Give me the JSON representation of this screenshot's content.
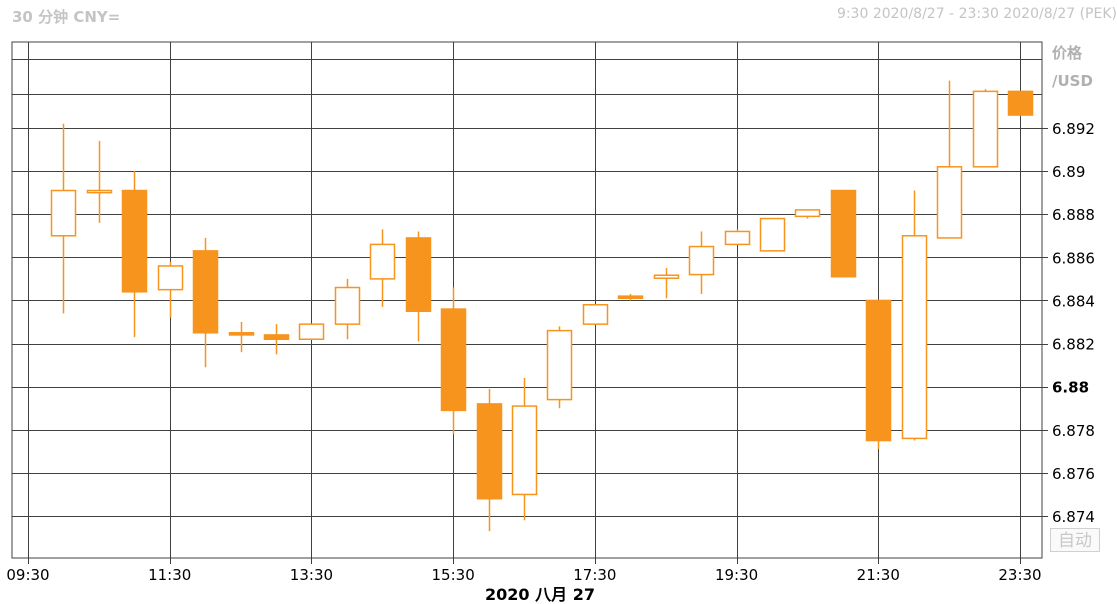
{
  "header": {
    "left_title": "30 分钟 CNY=",
    "time_range": "9:30 2020/8/27 - 23:30 2020/8/27 (PEK)"
  },
  "colors": {
    "up": "#f7941d",
    "down": "#f7941d",
    "grid": "#404040"
  },
  "auto_label": "自动",
  "chart_data": {
    "type": "candlestick",
    "ylabel": [
      "价格",
      "/USD"
    ],
    "xlabel": "2020 八月 27",
    "ylim": [
      6.8728,
      6.8952
    ],
    "yticks": [
      6.874,
      6.876,
      6.878,
      6.88,
      6.882,
      6.884,
      6.886,
      6.888,
      6.89,
      6.892
    ],
    "ytick_labels": [
      "6.874",
      "6.876",
      "6.878",
      "6.88",
      "6.882",
      "6.884",
      "6.886",
      "6.888",
      "6.89",
      "6.892"
    ],
    "highlight_tick": "6.88",
    "xlim": [
      0,
      28.6
    ],
    "xticks": [
      0,
      4,
      8,
      12,
      16,
      20,
      24,
      28
    ],
    "xtick_labels": [
      "09:30",
      "11:30",
      "13:30",
      "15:30",
      "17:30",
      "19:30",
      "21:30",
      "23:30"
    ],
    "extra_hlines": [
      6.8936,
      6.8952
    ],
    "candles": [
      {
        "t": "09:30",
        "o": 6.887,
        "h": 6.8922,
        "l": 6.8834,
        "c": 6.8891
      },
      {
        "t": "10:00",
        "o": 6.889,
        "h": 6.8914,
        "l": 6.8876,
        "c": 6.8891
      },
      {
        "t": "10:30",
        "o": 6.8891,
        "h": 6.89,
        "l": 6.8823,
        "c": 6.8844
      },
      {
        "t": "11:00",
        "o": 6.8845,
        "h": 6.8858,
        "l": 6.8832,
        "c": 6.8856
      },
      {
        "t": "11:30",
        "o": 6.8863,
        "h": 6.8869,
        "l": 6.8809,
        "c": 6.8825
      },
      {
        "t": "12:00",
        "o": 6.8825,
        "h": 6.883,
        "l": 6.8816,
        "c": 6.8824
      },
      {
        "t": "12:30",
        "o": 6.8824,
        "h": 6.8829,
        "l": 6.8815,
        "c": 6.8822
      },
      {
        "t": "13:00",
        "o": 6.8822,
        "h": 6.8829,
        "l": 6.8822,
        "c": 6.8829
      },
      {
        "t": "13:30",
        "o": 6.8829,
        "h": 6.885,
        "l": 6.8822,
        "c": 6.8846
      },
      {
        "t": "14:00",
        "o": 6.885,
        "h": 6.8873,
        "l": 6.8837,
        "c": 6.8866
      },
      {
        "t": "14:30",
        "o": 6.8869,
        "h": 6.8872,
        "l": 6.8821,
        "c": 6.8835
      },
      {
        "t": "15:00",
        "o": 6.8836,
        "h": 6.8846,
        "l": 6.8778,
        "c": 6.8789
      },
      {
        "t": "15:30",
        "o": 6.8792,
        "h": 6.8799,
        "l": 6.8733,
        "c": 6.8748
      },
      {
        "t": "16:00",
        "o": 6.875,
        "h": 6.8804,
        "l": 6.8738,
        "c": 6.8791
      },
      {
        "t": "16:30",
        "o": 6.8794,
        "h": 6.8828,
        "l": 6.879,
        "c": 6.8826
      },
      {
        "t": "17:00",
        "o": 6.8829,
        "h": 6.8838,
        "l": 6.8829,
        "c": 6.8838
      },
      {
        "t": "17:30",
        "o": 6.8842,
        "h": 6.8843,
        "l": 6.884,
        "c": 6.8841
      },
      {
        "t": "18:00",
        "o": 6.8851,
        "h": 6.8855,
        "l": 6.8841,
        "c": 6.8851
      },
      {
        "t": "18:30",
        "o": 6.8852,
        "h": 6.8872,
        "l": 6.8843,
        "c": 6.8865
      },
      {
        "t": "19:00",
        "o": 6.8866,
        "h": 6.8873,
        "l": 6.8866,
        "c": 6.8872
      },
      {
        "t": "19:30",
        "o": 6.8863,
        "h": 6.8878,
        "l": 6.8863,
        "c": 6.8878
      },
      {
        "t": "20:00",
        "o": 6.8879,
        "h": 6.8882,
        "l": 6.8878,
        "c": 6.8882
      },
      {
        "t": "20:30",
        "o": 6.8891,
        "h": 6.8891,
        "l": 6.8851,
        "c": 6.8851
      },
      {
        "t": "21:00",
        "o": 6.884,
        "h": 6.884,
        "l": 6.8771,
        "c": 6.8775
      },
      {
        "t": "21:30",
        "o": 6.8776,
        "h": 6.8891,
        "l": 6.8775,
        "c": 6.887
      },
      {
        "t": "22:00",
        "o": 6.8869,
        "h": 6.8942,
        "l": 6.8869,
        "c": 6.8902
      },
      {
        "t": "22:30",
        "o": 6.8902,
        "h": 6.8938,
        "l": 6.8902,
        "c": 6.8937
      },
      {
        "t": "23:00",
        "o": 6.8937,
        "h": 6.8937,
        "l": 6.8926,
        "c": 6.8926
      }
    ]
  }
}
